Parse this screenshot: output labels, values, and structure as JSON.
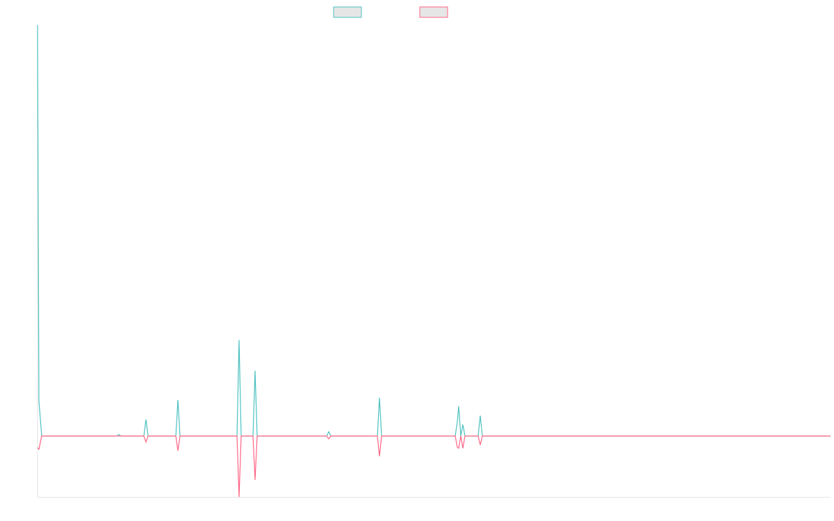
{
  "chart_data": {
    "type": "line",
    "x": [
      0,
      2,
      6,
      114,
      117,
      120,
      153,
      156,
      159,
      199,
      202,
      205,
      287,
      290,
      293,
      310,
      313,
      316,
      416,
      419,
      422,
      489,
      492,
      495,
      601,
      604,
      606,
      609,
      612,
      615,
      634,
      637,
      640,
      1141
    ],
    "xlim": [
      0,
      1141
    ],
    "ylim": [
      -13,
      87
    ],
    "series": [
      {
        "color": "#4bc0c0",
        "values": [
          87,
          7.4,
          0,
          0,
          0.3,
          0,
          0,
          3.5,
          0,
          0,
          7.6,
          0,
          0,
          20.3,
          0,
          0,
          13.8,
          0,
          0,
          0.9,
          0,
          0,
          8.1,
          0,
          0,
          3,
          6.3,
          0,
          2.4,
          0,
          0,
          4.3,
          0,
          0
        ]
      },
      {
        "color": "#ff6384",
        "values": [
          -2.5,
          -2.8,
          0,
          0,
          0,
          0,
          0,
          -1.3,
          0,
          0,
          -3.1,
          0,
          0,
          -12.9,
          0,
          0,
          -9.3,
          0,
          0,
          -0.6,
          0,
          0,
          -4.3,
          0,
          0,
          -2.4,
          -2.6,
          0,
          -2.6,
          0,
          0,
          -1.9,
          0,
          0
        ]
      }
    ]
  }
}
